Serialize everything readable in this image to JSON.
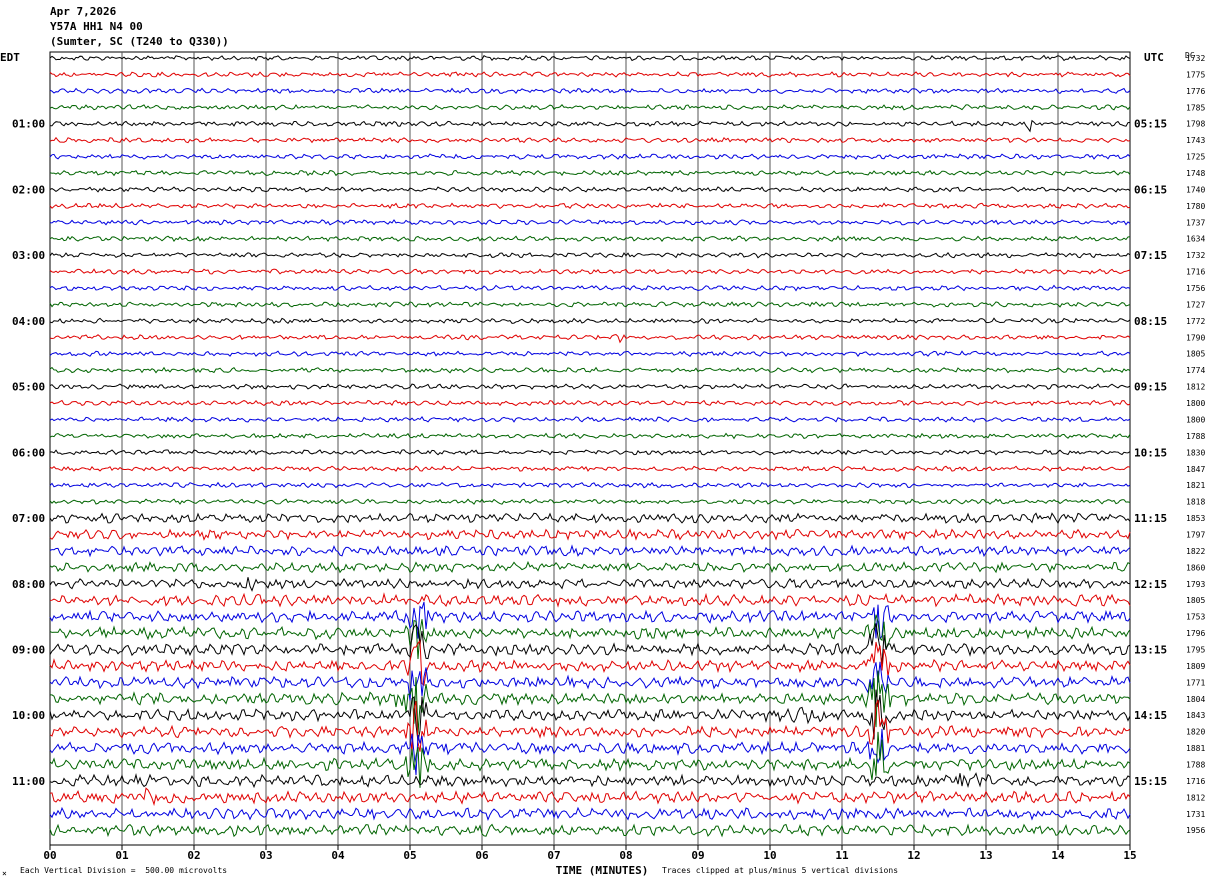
{
  "header": {
    "date": "Apr 7,2026",
    "station": "Y57A HH1 N4 00",
    "location": "(Sumter, SC (T240 to Q330))"
  },
  "footer": {
    "scale_note": "Each Vertical Division =  500.00 microvolts",
    "clip_note": "Traces clipped at plus/minus 5 vertical divisions",
    "corner_mark": "×"
  },
  "chart_data": {
    "type": "line",
    "title": "Y57A HH1 N4 00",
    "xlabel": "TIME (MINUTES)",
    "left_axis_label": "EDT",
    "right_axis_label": "UTC",
    "dc_label": "DC",
    "x_range": [
      0,
      15
    ],
    "x_ticks": [
      "00",
      "01",
      "02",
      "03",
      "04",
      "05",
      "06",
      "07",
      "08",
      "09",
      "10",
      "11",
      "12",
      "13",
      "14",
      "15"
    ],
    "grid": true,
    "trace_colors": [
      "#000000",
      "#e00000",
      "#0000e0",
      "#006400"
    ],
    "edt_hour_labels": [
      "01:00",
      "02:00",
      "03:00",
      "04:00",
      "05:00",
      "06:00",
      "07:00",
      "08:00",
      "09:00",
      "10:00",
      "11:00"
    ],
    "utc_hour_labels": [
      "05:15",
      "06:15",
      "07:15",
      "08:15",
      "09:15",
      "10:15",
      "11:15",
      "12:15",
      "13:15",
      "14:15",
      "15:15"
    ],
    "dc_offsets": [
      1732,
      1775,
      1776,
      1785,
      1798,
      1743,
      1725,
      1748,
      1740,
      1780,
      1737,
      1634,
      1732,
      1716,
      1756,
      1727,
      1772,
      1790,
      1805,
      1774,
      1812,
      1800,
      1800,
      1788,
      1830,
      1847,
      1821,
      1818,
      1853,
      1797,
      1822,
      1860,
      1793,
      1805,
      1753,
      1796,
      1795,
      1809,
      1771,
      1804,
      1843,
      1820,
      1881,
      1788,
      1716,
      1812,
      1731,
      1956
    ]
  }
}
